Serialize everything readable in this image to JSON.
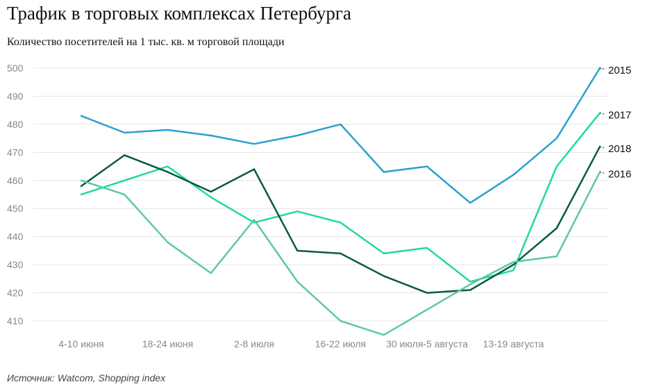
{
  "title": "Трафик в торговых комплексах Петербурга",
  "subtitle": "Количество посетителей на 1 тыс. кв. м торговой площади",
  "source": "Источник: Watcom, Shopping index",
  "chart_data": {
    "type": "line",
    "title": "Трафик в торговых комплексах Петербурга",
    "subtitle": "Количество посетителей на 1 тыс. кв. м торговой площади",
    "xlabel": "",
    "ylabel": "",
    "ylim": [
      405,
      502
    ],
    "yticks": [
      410,
      420,
      430,
      440,
      450,
      460,
      470,
      480,
      490,
      500
    ],
    "grid": true,
    "legend": "right-end labels",
    "point_count": 13,
    "x_tick_labels": [
      {
        "index": 0,
        "label": "4-10 июня"
      },
      {
        "index": 2,
        "label": "18-24 июня"
      },
      {
        "index": 4,
        "label": "2-8 июля"
      },
      {
        "index": 6,
        "label": "16-22 июля"
      },
      {
        "index": 8,
        "label": "30 июля-5 августа"
      },
      {
        "index": 10,
        "label": "13-19 августа"
      }
    ],
    "series": [
      {
        "name": "2015",
        "color": "#2a9fd0",
        "values": [
          483,
          477,
          478,
          476,
          473,
          476,
          480,
          463,
          465,
          452,
          462,
          475,
          500
        ]
      },
      {
        "name": "2017",
        "color": "#1ed99e",
        "values": [
          455,
          460,
          465,
          454,
          445,
          449,
          445,
          434,
          436,
          424,
          428,
          465,
          484
        ]
      },
      {
        "name": "2018",
        "color": "#0b5a3a",
        "values": [
          458,
          469,
          463,
          456,
          464,
          435,
          434,
          426,
          420,
          421,
          430,
          443,
          472
        ]
      },
      {
        "name": "2016",
        "color": "#5cc9a0",
        "values": [
          460,
          455,
          438,
          427,
          446,
          424,
          410,
          405,
          414,
          423,
          431,
          433,
          463
        ]
      }
    ]
  }
}
